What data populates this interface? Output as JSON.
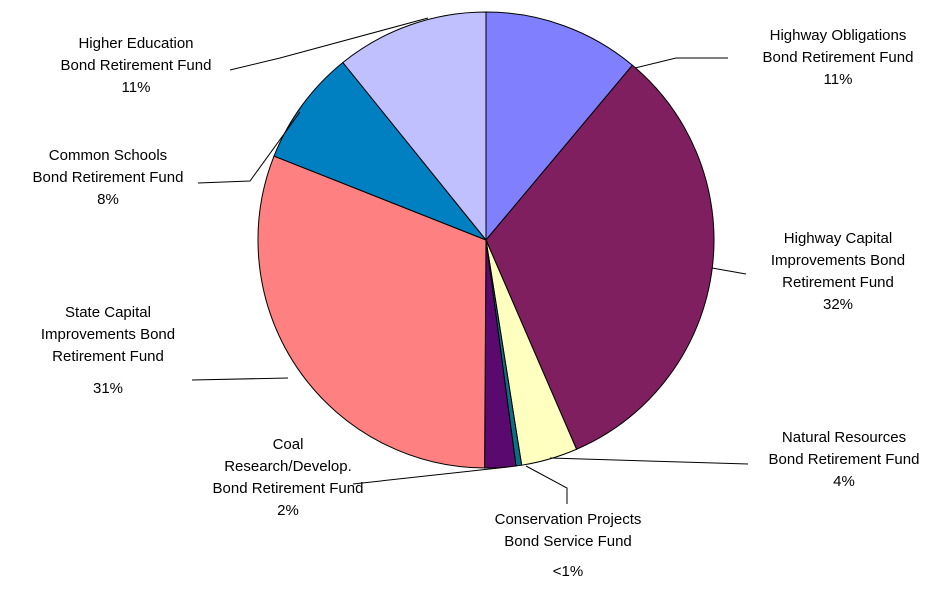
{
  "chart_data": {
    "type": "pie",
    "title": "",
    "start_angle_deg": 0,
    "direction": "clockwise",
    "slices": [
      {
        "label_lines": [
          "Highway Obligations",
          "Bond Retirement Fund"
        ],
        "percent_label": "11%",
        "value": 11.1,
        "color": "#8080FF"
      },
      {
        "label_lines": [
          "Highway Capital",
          "Improvements Bond",
          "Retirement Fund"
        ],
        "percent_label": "32%",
        "value": 32.4,
        "color": "#7F1F5F"
      },
      {
        "label_lines": [
          "Natural Resources",
          "Bond Retirement Fund"
        ],
        "percent_label": "4%",
        "value": 4.0,
        "color": "#FFFFC0"
      },
      {
        "label_lines": [
          "Conservation Projects",
          "Bond Service Fund"
        ],
        "percent_label": "<1%",
        "value": 0.4,
        "color": "#0A6E84"
      },
      {
        "label_lines": [
          "Coal",
          "Research/Develop.",
          "Bond Retirement Fund"
        ],
        "percent_label": "2%",
        "value": 2.2,
        "color": "#5A0A6E"
      },
      {
        "label_lines": [
          "State Capital",
          "Improvements Bond",
          "Retirement Fund"
        ],
        "percent_label": "31%",
        "value": 30.9,
        "color": "#FF8080"
      },
      {
        "label_lines": [
          "Common Schools",
          "Bond Retirement Fund"
        ],
        "percent_label": "8%",
        "value": 8.2,
        "color": "#0080C0"
      },
      {
        "label_lines": [
          "Higher Education",
          "Bond Retirement Fund"
        ],
        "percent_label": "11%",
        "value": 10.8,
        "color": "#C0C0FF"
      }
    ]
  }
}
